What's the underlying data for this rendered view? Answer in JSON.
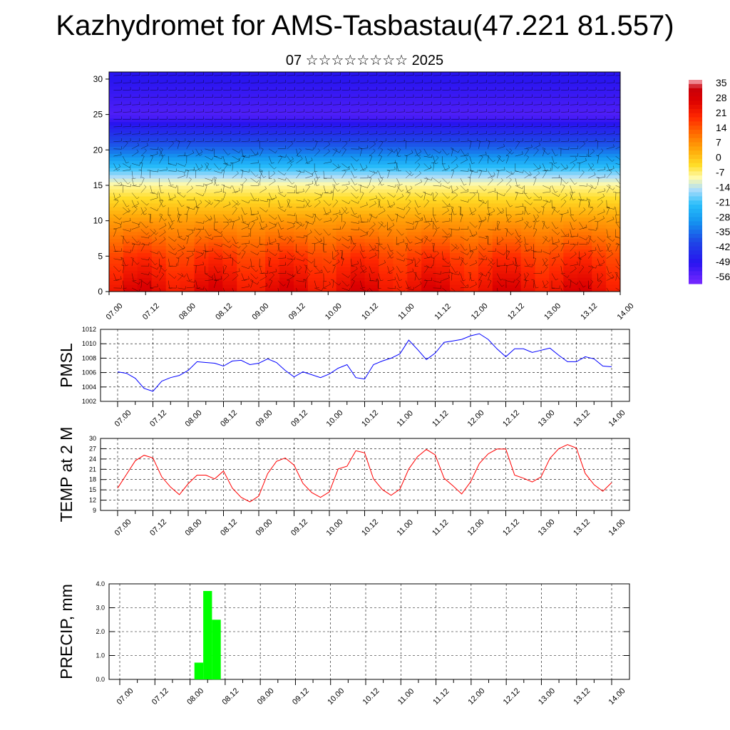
{
  "page": {
    "title": "Kazhydromet for AMS-Tasbastau(47.221 81.557)",
    "subtitle": "07 ☆☆☆☆☆☆☆☆ 2025"
  },
  "x_ticks": [
    "07.00",
    "07.12",
    "08.00",
    "08.12",
    "09.00",
    "09.12",
    "10.00",
    "10.12",
    "11.00",
    "11.12",
    "12.00",
    "12.12",
    "13.00",
    "13.12",
    "14.00"
  ],
  "colors": {
    "pmsl_line": "#0000ff",
    "temp_line": "#ff0000",
    "precip_bar": "#00ff00",
    "grid": "#000000"
  },
  "chart_data": [
    {
      "type": "heatmap",
      "description_label": "Temperature cross-section with wind barbs",
      "y_ticks": [
        "0",
        "5",
        "10",
        "15",
        "20",
        "25",
        "30"
      ],
      "ylim": [
        0,
        31
      ],
      "x_ticks": [
        "07.00",
        "07.12",
        "08.00",
        "08.12",
        "09.00",
        "09.12",
        "10.00",
        "10.12",
        "11.00",
        "11.12",
        "12.00",
        "12.12",
        "13.00",
        "13.12",
        "14.00"
      ],
      "colorbar": {
        "labels": [
          "35",
          "28",
          "21",
          "14",
          "7",
          "0",
          "-7",
          "-14",
          "-21",
          "-28",
          "-35",
          "-42",
          "-49",
          "-56"
        ],
        "range": [
          -60,
          38
        ]
      },
      "temperature_profile": {
        "levels_km": [
          0,
          5,
          10,
          15,
          20,
          25,
          30
        ],
        "temp_c": [
          26,
          18,
          6,
          -8,
          -35,
          -55,
          -50
        ]
      }
    },
    {
      "type": "line",
      "ylabel": "PMSL",
      "ylim": [
        1002,
        1012
      ],
      "y_ticks": [
        "1002",
        "1004",
        "1006",
        "1008",
        "1010",
        "1012"
      ],
      "x_ticks": [
        "07.00",
        "07.12",
        "08.00",
        "08.12",
        "09.00",
        "09.12",
        "10.00",
        "10.12",
        "11.00",
        "11.12",
        "12.00",
        "12.12",
        "13.00",
        "13.12",
        "14.00"
      ],
      "series": [
        {
          "values": [
            1006.1,
            1005.9,
            1005.2,
            1003.8,
            1003.4,
            1004.8,
            1005.3,
            1005.6,
            1006.3,
            1007.5,
            1007.4,
            1007.3,
            1006.9,
            1007.6,
            1007.7,
            1007.1,
            1007.3,
            1007.9,
            1007.4,
            1006.3,
            1005.4,
            1006.1,
            1005.7,
            1005.3,
            1005.8,
            1006.6,
            1007.1,
            1005.3,
            1005.1,
            1007.1,
            1007.6,
            1008.0,
            1008.6,
            1010.5,
            1009.2,
            1007.8,
            1008.7,
            1010.2,
            1010.4,
            1010.6,
            1011.1,
            1011.4,
            1010.6,
            1009.3,
            1008.2,
            1009.3,
            1009.3,
            1008.8,
            1009.1,
            1009.4,
            1008.4,
            1007.5,
            1007.5,
            1008.2,
            1007.9,
            1006.9,
            1006.8
          ]
        }
      ]
    },
    {
      "type": "line",
      "ylabel": "TEMP at 2 M",
      "ylim": [
        9,
        30
      ],
      "y_ticks": [
        "9",
        "12",
        "15",
        "18",
        "21",
        "24",
        "27",
        "30"
      ],
      "x_ticks": [
        "07.00",
        "07.12",
        "08.00",
        "08.12",
        "09.00",
        "09.12",
        "10.00",
        "10.12",
        "11.00",
        "11.12",
        "12.00",
        "12.12",
        "13.00",
        "13.12",
        "14.00"
      ],
      "series": [
        {
          "values": [
            15.5,
            19.5,
            23.5,
            25.1,
            24.3,
            18.8,
            15.8,
            13.6,
            16.8,
            19.3,
            19.3,
            18.2,
            20.5,
            15.5,
            12.8,
            11.5,
            13.2,
            19.7,
            23.3,
            24.3,
            22.2,
            16.9,
            14.2,
            12.8,
            14.4,
            21.1,
            21.9,
            26.4,
            25.8,
            18.2,
            15.1,
            13.4,
            15.2,
            21.1,
            24.7,
            26.8,
            25.2,
            18.4,
            16.2,
            13.8,
            17.3,
            22.7,
            25.5,
            26.9,
            26.9,
            19.3,
            18.4,
            17.3,
            18.8,
            24.2,
            27.0,
            28.2,
            27.2,
            19.8,
            16.5,
            14.6,
            17.1
          ]
        }
      ]
    },
    {
      "type": "bar",
      "ylabel": "PRECIP, mm",
      "ylim": [
        0,
        4
      ],
      "y_ticks": [
        "0.0",
        "1.0",
        "2.0",
        "3.0",
        "4.0"
      ],
      "x_ticks": [
        "07.00",
        "07.12",
        "08.00",
        "08.12",
        "09.00",
        "09.12",
        "10.00",
        "10.12",
        "11.00",
        "11.12",
        "12.00",
        "12.12",
        "13.00",
        "13.12",
        "14.00"
      ],
      "values": [
        0,
        0,
        0,
        0,
        0,
        0,
        0,
        0,
        0,
        0.7,
        3.7,
        2.5,
        0,
        0,
        0,
        0,
        0,
        0,
        0,
        0,
        0,
        0,
        0,
        0,
        0,
        0,
        0,
        0,
        0,
        0,
        0,
        0,
        0,
        0,
        0,
        0,
        0,
        0,
        0,
        0,
        0,
        0,
        0,
        0,
        0,
        0,
        0,
        0,
        0,
        0,
        0,
        0,
        0,
        0,
        0,
        0,
        0
      ]
    }
  ]
}
